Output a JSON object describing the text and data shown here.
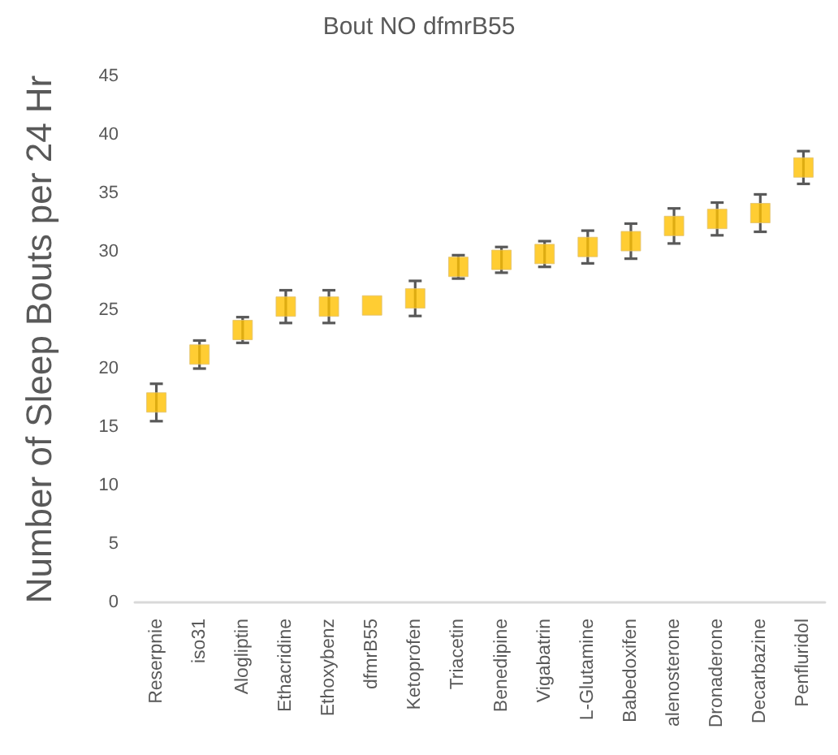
{
  "chart_data": {
    "type": "scatter",
    "title": "Bout NO dfmrB55",
    "ylabel": "Number of Sleep Bouts per 24 Hr",
    "categories": [
      "Reserpnie",
      "iso31",
      "Alogliptin",
      "Ethacridine",
      "Ethoxybenz",
      "dfmrB55",
      "Ketoprofen",
      "Triacetin",
      "Benedipine",
      "Vigabatrin",
      "L-Glutamine",
      "Babedoxifen",
      "alenosterone",
      "Dronaderone",
      "Decarbazine",
      "Penfluridol"
    ],
    "series": [
      {
        "color": "#ffc000",
        "values": [
          17.1,
          21.2,
          23.3,
          25.3,
          25.3,
          25.4,
          26.0,
          28.7,
          29.3,
          29.8,
          30.4,
          30.9,
          32.2,
          32.8,
          33.3,
          37.2
        ],
        "errors": [
          1.6,
          1.2,
          1.1,
          1.4,
          1.4,
          null,
          1.5,
          1.0,
          1.1,
          1.1,
          1.4,
          1.5,
          1.5,
          1.4,
          1.6,
          1.4
        ]
      }
    ],
    "ylim": [
      0,
      45
    ],
    "yticks": [
      0,
      5,
      10,
      15,
      20,
      25,
      30,
      35,
      40,
      45
    ],
    "grid": false,
    "marker": "square"
  }
}
